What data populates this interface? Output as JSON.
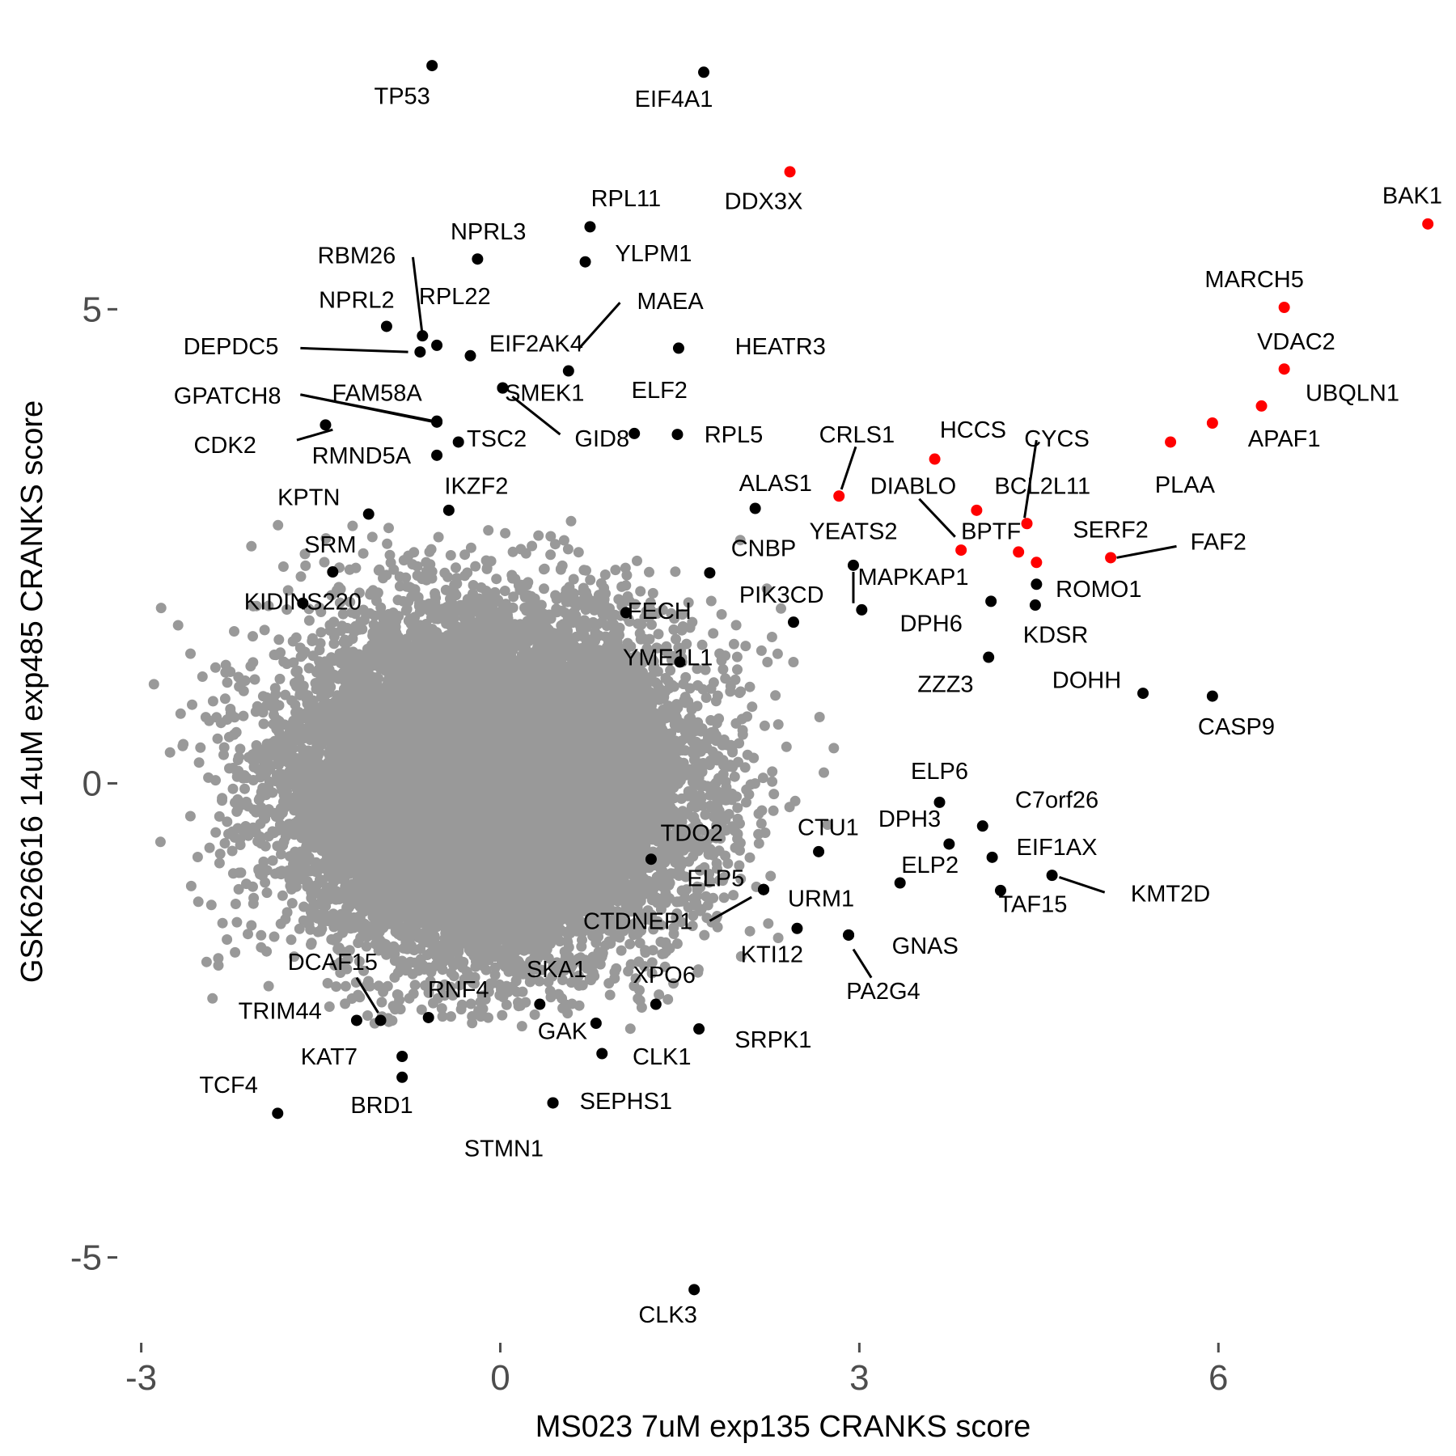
{
  "chart_data": {
    "type": "scatter",
    "title": "",
    "xlabel": "MS023 7uM exp135 CRANKS score",
    "ylabel": "GSK626616 14uM exp485 CRANKS score",
    "xlim": [
      -3.2,
      7.85
    ],
    "ylim": [
      -5.9,
      7.75
    ],
    "x_ticks": [
      -3,
      0,
      3,
      6
    ],
    "y_ticks": [
      -5,
      0,
      5
    ],
    "x_tick_labels": [
      "-3",
      "0",
      "3",
      "6"
    ],
    "y_tick_labels": [
      "-5",
      "0",
      "5"
    ],
    "grid": false,
    "legend": "none",
    "colors": {
      "background_points": "#999999",
      "hit": "#000000",
      "highlight": "#ff0000",
      "tick": "#4d4d4d",
      "text": "#000000"
    },
    "background_cloud": {
      "description_count": 18000,
      "x_center": -0.1,
      "y_center": 0.0,
      "x_sd": 0.75,
      "y_sd": 0.8
    },
    "points": [
      {
        "gene": "TP53",
        "x": -0.57,
        "y": 7.57,
        "color": "black",
        "label": {
          "x": -0.82,
          "y": 7.23
        }
      },
      {
        "gene": "EIF4A1",
        "x": 1.7,
        "y": 7.5,
        "color": "black",
        "label": {
          "x": 1.45,
          "y": 7.2
        }
      },
      {
        "gene": "DDX3X",
        "x": 2.42,
        "y": 6.45,
        "color": "red",
        "label": {
          "x": 2.2,
          "y": 6.12
        }
      },
      {
        "gene": "BAK1",
        "x": 7.75,
        "y": 5.9,
        "color": "red",
        "label": {
          "x": 7.62,
          "y": 6.18
        }
      },
      {
        "gene": "RPL11",
        "x": 0.75,
        "y": 5.87,
        "color": "black",
        "label": {
          "x": 1.05,
          "y": 6.15
        }
      },
      {
        "gene": "NPRL3",
        "x": -0.19,
        "y": 5.53,
        "color": "black",
        "label": {
          "x": -0.1,
          "y": 5.8
        }
      },
      {
        "gene": "YLPM1",
        "x": 0.71,
        "y": 5.5,
        "color": "black",
        "label": {
          "x": 1.28,
          "y": 5.57
        }
      },
      {
        "gene": "RBM26",
        "x": -0.65,
        "y": 4.72,
        "color": "black",
        "label": {
          "x": -1.2,
          "y": 5.55
        }
      },
      {
        "gene": "MARCH5",
        "x": 6.55,
        "y": 5.02,
        "color": "red",
        "label": {
          "x": 6.3,
          "y": 5.3
        }
      },
      {
        "gene": "MAEA",
        "x": 0.57,
        "y": 4.35,
        "color": "black",
        "label": {
          "x": 1.42,
          "y": 5.07
        }
      },
      {
        "gene": "RPL22",
        "x": -0.53,
        "y": 4.62,
        "color": "black",
        "label": {
          "x": -0.38,
          "y": 5.12
        }
      },
      {
        "gene": "NPRL2",
        "x": -0.95,
        "y": 4.82,
        "color": "black",
        "label": {
          "x": -1.2,
          "y": 5.08
        }
      },
      {
        "gene": "HEATR3",
        "x": 1.49,
        "y": 4.59,
        "color": "black",
        "label": {
          "x": 2.34,
          "y": 4.59
        }
      },
      {
        "gene": "EIF2AK4",
        "x": -0.25,
        "y": 4.51,
        "color": "black",
        "label": {
          "x": 0.3,
          "y": 4.62
        }
      },
      {
        "gene": "DEPDC5",
        "x": -0.67,
        "y": 4.55,
        "color": "black",
        "label": {
          "x": -2.25,
          "y": 4.59
        }
      },
      {
        "gene": "VDAC2",
        "x": 6.55,
        "y": 4.37,
        "color": "red",
        "label": {
          "x": 6.65,
          "y": 4.64
        }
      },
      {
        "gene": "UBQLN1",
        "x": 6.36,
        "y": 3.98,
        "color": "red",
        "label": {
          "x": 7.12,
          "y": 4.1
        }
      },
      {
        "gene": "SMEK1",
        "x": 0.02,
        "y": 4.17,
        "color": "black",
        "label": {
          "x": 0.37,
          "y": 4.1
        }
      },
      {
        "gene": "ELF2",
        "x": 1.12,
        "y": 3.69,
        "color": "black",
        "label": {
          "x": 1.33,
          "y": 4.13
        }
      },
      {
        "gene": "FAM58A",
        "x": -0.53,
        "y": 3.81,
        "color": "black",
        "label": {
          "x": -1.03,
          "y": 4.1
        }
      },
      {
        "gene": "GPATCH8",
        "x": -0.53,
        "y": 3.82,
        "color": "black",
        "label": {
          "x": -2.28,
          "y": 4.07
        }
      },
      {
        "gene": "GID8",
        "x": 0.02,
        "y": 4.17,
        "color": "black",
        "label": {
          "x": 0.85,
          "y": 3.62
        }
      },
      {
        "gene": "RPL5",
        "x": 1.48,
        "y": 3.68,
        "color": "black",
        "label": {
          "x": 1.95,
          "y": 3.66
        }
      },
      {
        "gene": "CRLS1",
        "x": 2.83,
        "y": 3.03,
        "color": "red",
        "label": {
          "x": 2.98,
          "y": 3.66
        }
      },
      {
        "gene": "HCCS",
        "x": 3.63,
        "y": 3.42,
        "color": "red",
        "label": {
          "x": 3.95,
          "y": 3.71
        }
      },
      {
        "gene": "CYCS",
        "x": 4.4,
        "y": 2.74,
        "color": "red",
        "label": {
          "x": 4.65,
          "y": 3.62
        }
      },
      {
        "gene": "APAF1",
        "x": 5.95,
        "y": 3.8,
        "color": "red",
        "label": {
          "x": 6.55,
          "y": 3.62
        }
      },
      {
        "gene": "CDK2",
        "x": -1.46,
        "y": 3.78,
        "color": "black",
        "label": {
          "x": -2.3,
          "y": 3.55
        }
      },
      {
        "gene": "TSC2",
        "x": -0.35,
        "y": 3.6,
        "color": "black",
        "label": {
          "x": -0.03,
          "y": 3.62
        }
      },
      {
        "gene": "RMND5A",
        "x": -0.53,
        "y": 3.46,
        "color": "black",
        "label": {
          "x": -1.16,
          "y": 3.44
        }
      },
      {
        "gene": "PLAA",
        "x": 5.6,
        "y": 3.6,
        "color": "red",
        "label": {
          "x": 5.72,
          "y": 3.13
        }
      },
      {
        "gene": "ALAS1",
        "x": 2.13,
        "y": 2.9,
        "color": "black",
        "label": {
          "x": 2.3,
          "y": 3.15
        }
      },
      {
        "gene": "DIABLO",
        "x": 3.85,
        "y": 2.46,
        "color": "red",
        "label": {
          "x": 3.45,
          "y": 3.12
        }
      },
      {
        "gene": "BCL2L11",
        "x": 3.98,
        "y": 2.88,
        "color": "red",
        "label": {
          "x": 4.53,
          "y": 3.12
        }
      },
      {
        "gene": "IKZF2",
        "x": -0.43,
        "y": 2.88,
        "color": "black",
        "label": {
          "x": -0.2,
          "y": 3.12
        }
      },
      {
        "gene": "KPTN",
        "x": -1.1,
        "y": 2.84,
        "color": "black",
        "label": {
          "x": -1.6,
          "y": 3.0
        }
      },
      {
        "gene": "YEATS2",
        "x": 2.95,
        "y": 2.3,
        "color": "black",
        "label": {
          "x": 2.95,
          "y": 2.64
        }
      },
      {
        "gene": "BPTF",
        "x": 4.33,
        "y": 2.44,
        "color": "red",
        "label": {
          "x": 4.1,
          "y": 2.64
        }
      },
      {
        "gene": "SERF2",
        "x": 4.48,
        "y": 2.33,
        "color": "red",
        "label": {
          "x": 5.1,
          "y": 2.66
        }
      },
      {
        "gene": "FAF2",
        "x": 5.1,
        "y": 2.38,
        "color": "red",
        "label": {
          "x": 6.0,
          "y": 2.53
        }
      },
      {
        "gene": "SRM",
        "x": -1.4,
        "y": 2.23,
        "color": "black",
        "label": {
          "x": -1.42,
          "y": 2.5
        }
      },
      {
        "gene": "CNBP",
        "x": 1.75,
        "y": 2.22,
        "color": "black",
        "label": {
          "x": 2.2,
          "y": 2.46
        }
      },
      {
        "gene": "MAPKAP1",
        "x": 3.02,
        "y": 1.83,
        "color": "black",
        "label": {
          "x": 3.45,
          "y": 2.16
        }
      },
      {
        "gene": "ROMO1",
        "x": 4.48,
        "y": 2.1,
        "color": "black",
        "label": {
          "x": 5.0,
          "y": 2.03
        }
      },
      {
        "gene": "PIK3CD",
        "x": 2.45,
        "y": 1.7,
        "color": "black",
        "label": {
          "x": 2.35,
          "y": 1.97
        }
      },
      {
        "gene": "KIDINS220",
        "x": -1.65,
        "y": 1.9,
        "color": "black",
        "label": {
          "x": -1.65,
          "y": 1.9
        }
      },
      {
        "gene": "FECH",
        "x": 1.05,
        "y": 1.8,
        "color": "black",
        "label": {
          "x": 1.33,
          "y": 1.8
        }
      },
      {
        "gene": "DPH6",
        "x": 4.1,
        "y": 1.92,
        "color": "black",
        "label": {
          "x": 3.6,
          "y": 1.67
        }
      },
      {
        "gene": "KDSR",
        "x": 4.47,
        "y": 1.88,
        "color": "black",
        "label": {
          "x": 4.64,
          "y": 1.55
        }
      },
      {
        "gene": "YME1L1",
        "x": 1.5,
        "y": 1.28,
        "color": "black",
        "label": {
          "x": 1.4,
          "y": 1.31
        }
      },
      {
        "gene": "ZZZ3",
        "x": 4.08,
        "y": 1.33,
        "color": "black",
        "label": {
          "x": 3.72,
          "y": 1.03
        }
      },
      {
        "gene": "DOHH",
        "x": 5.37,
        "y": 0.95,
        "color": "black",
        "label": {
          "x": 4.9,
          "y": 1.07
        }
      },
      {
        "gene": "CASP9",
        "x": 5.95,
        "y": 0.92,
        "color": "black",
        "label": {
          "x": 6.15,
          "y": 0.58
        }
      },
      {
        "gene": "ELP6",
        "x": 3.67,
        "y": -0.2,
        "color": "black",
        "label": {
          "x": 3.67,
          "y": 0.11
        }
      },
      {
        "gene": "C7orf26",
        "x": 4.03,
        "y": -0.45,
        "color": "black",
        "label": {
          "x": 4.65,
          "y": -0.19
        }
      },
      {
        "gene": "DPH3",
        "x": 3.75,
        "y": -0.64,
        "color": "black",
        "label": {
          "x": 3.42,
          "y": -0.39
        }
      },
      {
        "gene": "CTU1",
        "x": 2.66,
        "y": -0.72,
        "color": "black",
        "label": {
          "x": 2.74,
          "y": -0.48
        }
      },
      {
        "gene": "TDO2",
        "x": 1.26,
        "y": -0.8,
        "color": "black",
        "label": {
          "x": 1.6,
          "y": -0.54
        }
      },
      {
        "gene": "EIF1AX",
        "x": 4.11,
        "y": -0.78,
        "color": "black",
        "label": {
          "x": 4.65,
          "y": -0.69
        }
      },
      {
        "gene": "ELP2",
        "x": 3.34,
        "y": -1.05,
        "color": "black",
        "label": {
          "x": 3.59,
          "y": -0.88
        }
      },
      {
        "gene": "KMT2D",
        "x": 4.61,
        "y": -0.97,
        "color": "black",
        "label": {
          "x": 5.6,
          "y": -1.18
        }
      },
      {
        "gene": "TAF15",
        "x": 4.18,
        "y": -1.13,
        "color": "black",
        "label": {
          "x": 4.45,
          "y": -1.29
        }
      },
      {
        "gene": "ELP5",
        "x": 2.2,
        "y": -1.12,
        "color": "black",
        "label": {
          "x": 1.8,
          "y": -1.02
        }
      },
      {
        "gene": "URM1",
        "x": 2.2,
        "y": -1.12,
        "color": "black",
        "label": {
          "x": 2.68,
          "y": -1.23
        }
      },
      {
        "gene": "CTDNEP1",
        "x": 2.2,
        "y": -1.12,
        "color": "black",
        "label": {
          "x": 1.15,
          "y": -1.47
        }
      },
      {
        "gene": "GNAS",
        "x": 2.91,
        "y": -1.6,
        "color": "black",
        "label": {
          "x": 3.55,
          "y": -1.73
        }
      },
      {
        "gene": "KTI12",
        "x": 2.48,
        "y": -1.53,
        "color": "black",
        "label": {
          "x": 2.27,
          "y": -1.82
        }
      },
      {
        "gene": "PA2G4",
        "x": 2.91,
        "y": -1.6,
        "color": "black",
        "label": {
          "x": 3.2,
          "y": -2.21
        }
      },
      {
        "gene": "DCAF15",
        "x": -1.0,
        "y": -2.5,
        "color": "black",
        "label": {
          "x": -1.4,
          "y": -1.9
        }
      },
      {
        "gene": "SKA1",
        "x": 0.33,
        "y": -2.33,
        "color": "black",
        "label": {
          "x": 0.47,
          "y": -1.98
        }
      },
      {
        "gene": "XPO6",
        "x": 1.3,
        "y": -2.33,
        "color": "black",
        "label": {
          "x": 1.37,
          "y": -2.04
        }
      },
      {
        "gene": "RNF4",
        "x": -0.6,
        "y": -2.47,
        "color": "black",
        "label": {
          "x": -0.35,
          "y": -2.19
        }
      },
      {
        "gene": "TRIM44",
        "x": -1.2,
        "y": -2.5,
        "color": "black",
        "label": {
          "x": -1.84,
          "y": -2.42
        }
      },
      {
        "gene": "GAK",
        "x": 0.8,
        "y": -2.53,
        "color": "black",
        "label": {
          "x": 0.52,
          "y": -2.63
        }
      },
      {
        "gene": "SRPK1",
        "x": 1.66,
        "y": -2.59,
        "color": "black",
        "label": {
          "x": 2.28,
          "y": -2.72
        }
      },
      {
        "gene": "KAT7",
        "x": -0.82,
        "y": -2.88,
        "color": "black",
        "label": {
          "x": -1.43,
          "y": -2.9
        }
      },
      {
        "gene": "CLK1",
        "x": 0.85,
        "y": -2.85,
        "color": "black",
        "label": {
          "x": 1.35,
          "y": -2.9
        }
      },
      {
        "gene": "TCF4",
        "x": -1.86,
        "y": -3.48,
        "color": "black",
        "label": {
          "x": -2.27,
          "y": -3.2
        }
      },
      {
        "gene": "BRD1",
        "x": -0.82,
        "y": -3.1,
        "color": "black",
        "label": {
          "x": -0.99,
          "y": -3.41
        }
      },
      {
        "gene": "SEPHS1",
        "x": 0.44,
        "y": -3.37,
        "color": "black",
        "label": {
          "x": 1.05,
          "y": -3.37
        }
      },
      {
        "gene": "STMN1",
        "x": 0.44,
        "y": -3.37,
        "color": "black",
        "label": {
          "x": 0.03,
          "y": -3.87
        }
      },
      {
        "gene": "CLK3",
        "x": 1.62,
        "y": -5.34,
        "color": "black",
        "label": {
          "x": 1.4,
          "y": -5.62
        }
      }
    ],
    "label_lines": [
      {
        "gene": "RBM26",
        "from": [
          -0.73,
          5.55
        ],
        "to": [
          -0.65,
          4.72
        ]
      },
      {
        "gene": "DEPDC5",
        "from": [
          -1.67,
          4.59
        ],
        "to": [
          -0.77,
          4.55
        ]
      },
      {
        "gene": "MAEA",
        "from": [
          1.0,
          5.07
        ],
        "to": [
          0.66,
          4.59
        ]
      },
      {
        "gene": "FAM58A",
        "from": [
          -1.67,
          4.1
        ],
        "to": [
          -0.55,
          3.81
        ]
      },
      {
        "gene": "GPATCH8",
        "from": [
          -1.67,
          4.1
        ],
        "to": [
          -0.55,
          3.82
        ]
      },
      {
        "gene": "CDK2",
        "from": [
          -1.7,
          3.62
        ],
        "to": [
          -1.4,
          3.73
        ]
      },
      {
        "gene": "GID8",
        "from": [
          0.1,
          4.08
        ],
        "to": [
          0.5,
          3.68
        ]
      },
      {
        "gene": "CRLS1",
        "from": [
          2.97,
          3.55
        ],
        "to": [
          2.85,
          3.1
        ]
      },
      {
        "gene": "DIABLO",
        "from": [
          3.5,
          3.0
        ],
        "to": [
          3.8,
          2.6
        ]
      },
      {
        "gene": "CYCS",
        "from": [
          4.48,
          3.62
        ],
        "to": [
          4.38,
          2.8
        ]
      },
      {
        "gene": "YEATS2",
        "from": [
          2.95,
          2.23
        ],
        "to": [
          2.95,
          1.9
        ]
      },
      {
        "gene": "FAF2",
        "from": [
          5.15,
          2.38
        ],
        "to": [
          5.65,
          2.5
        ]
      },
      {
        "gene": "KMT2D",
        "from": [
          4.67,
          -0.99
        ],
        "to": [
          5.05,
          -1.15
        ]
      },
      {
        "gene": "CTDNEP1",
        "from": [
          1.75,
          -1.45
        ],
        "to": [
          2.1,
          -1.2
        ]
      },
      {
        "gene": "PA2G4",
        "from": [
          2.95,
          -1.75
        ],
        "to": [
          3.1,
          -2.05
        ]
      },
      {
        "gene": "DCAF15",
        "from": [
          -1.2,
          -2.05
        ],
        "to": [
          -1.02,
          -2.42
        ]
      }
    ]
  }
}
